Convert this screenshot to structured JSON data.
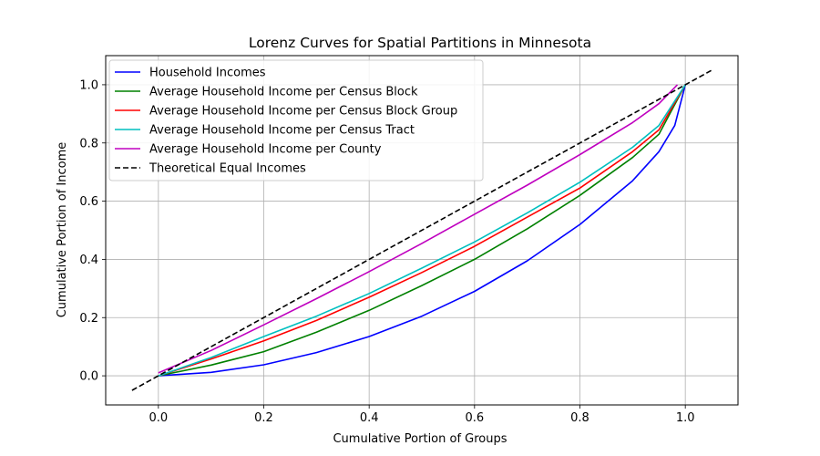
{
  "chart_data": {
    "type": "line",
    "title": "Lorenz Curves for Spatial Partitions in Minnesota",
    "xlabel": "Cumulative Portion of Groups",
    "ylabel": "Cumulative Portion of Income",
    "xlim": [
      -0.1,
      1.1
    ],
    "ylim": [
      -0.1,
      1.1
    ],
    "xticks": [
      "0.0",
      "0.2",
      "0.4",
      "0.6",
      "0.8",
      "1.0"
    ],
    "yticks": [
      "0.0",
      "0.2",
      "0.4",
      "0.6",
      "0.8",
      "1.0"
    ],
    "grid": true,
    "legend_position": "top-left",
    "series": [
      {
        "name": "Household Incomes",
        "color": "#0000ff",
        "style": "solid",
        "x": [
          0,
          0.1,
          0.2,
          0.3,
          0.4,
          0.5,
          0.6,
          0.7,
          0.8,
          0.9,
          0.95,
          0.98,
          1.0
        ],
        "y": [
          0,
          0.012,
          0.038,
          0.08,
          0.135,
          0.205,
          0.29,
          0.395,
          0.52,
          0.67,
          0.77,
          0.86,
          1.0
        ]
      },
      {
        "name": "Average Household Income per Census Block",
        "color": "#008000",
        "style": "solid",
        "x": [
          0,
          0.1,
          0.2,
          0.3,
          0.4,
          0.5,
          0.6,
          0.7,
          0.8,
          0.9,
          0.95,
          1.0
        ],
        "y": [
          0,
          0.037,
          0.083,
          0.15,
          0.225,
          0.31,
          0.4,
          0.505,
          0.62,
          0.75,
          0.83,
          1.0
        ]
      },
      {
        "name": "Average Household Income per Census Block Group",
        "color": "#ff0000",
        "style": "solid",
        "x": [
          0,
          0.1,
          0.2,
          0.3,
          0.4,
          0.5,
          0.6,
          0.7,
          0.8,
          0.9,
          0.95,
          1.0
        ],
        "y": [
          0,
          0.058,
          0.12,
          0.19,
          0.27,
          0.355,
          0.445,
          0.545,
          0.645,
          0.77,
          0.845,
          1.0
        ]
      },
      {
        "name": "Average Household Income per Census Tract",
        "color": "#00bfbf",
        "style": "solid",
        "x": [
          0,
          0.1,
          0.2,
          0.3,
          0.4,
          0.5,
          0.6,
          0.7,
          0.8,
          0.9,
          0.95,
          1.0
        ],
        "y": [
          0,
          0.063,
          0.135,
          0.205,
          0.283,
          0.37,
          0.46,
          0.56,
          0.665,
          0.785,
          0.86,
          1.0
        ]
      },
      {
        "name": "Average Household Income per County",
        "color": "#bf00bf",
        "style": "solid",
        "x": [
          0,
          0.1,
          0.2,
          0.3,
          0.4,
          0.5,
          0.6,
          0.7,
          0.8,
          0.9,
          0.95,
          0.985
        ],
        "y": [
          0.01,
          0.087,
          0.175,
          0.265,
          0.358,
          0.455,
          0.555,
          0.655,
          0.76,
          0.87,
          0.935,
          1.0
        ]
      },
      {
        "name": "Theoretical Equal Incomes",
        "color": "#000000",
        "style": "dashed",
        "x": [
          -0.05,
          1.05
        ],
        "y": [
          -0.05,
          1.05
        ]
      }
    ]
  }
}
